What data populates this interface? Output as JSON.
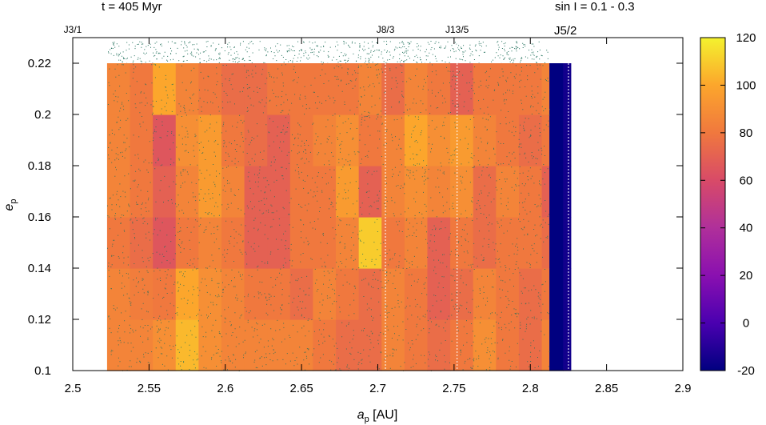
{
  "chart_data": {
    "type": "heatmap",
    "title_left": "t = 405 Myr",
    "title_right": "sin I = 0.1 - 0.3",
    "xlabel_main": "a",
    "xlabel_sub": "p",
    "xlabel_unit": " [AU]",
    "ylabel_main": "e",
    "ylabel_sub": "p",
    "xlim": [
      2.5,
      2.9
    ],
    "ylim": [
      0.1,
      0.23
    ],
    "x_ticks": [
      "2.5",
      "2.55",
      "2.6",
      "2.65",
      "2.7",
      "2.75",
      "2.8",
      "2.85",
      "2.9"
    ],
    "y_ticks": [
      "0.1",
      "0.12",
      "0.14",
      "0.16",
      "0.18",
      "0.2",
      "0.22"
    ],
    "colorbar": {
      "min": -20,
      "max": 120,
      "ticks": [
        "-20",
        "0",
        "20",
        "40",
        "60",
        "80",
        "100",
        "120"
      ]
    },
    "resonances": [
      {
        "label": "J3/1",
        "a": 2.5
      },
      {
        "label": "J8/3",
        "a": 2.705
      },
      {
        "label": "J13/5",
        "a": 2.752
      },
      {
        "label": "J5/2",
        "a": 2.825
      }
    ],
    "x_edges": [
      2.5225,
      2.5375,
      2.5525,
      2.5675,
      2.5825,
      2.5975,
      2.6125,
      2.6275,
      2.6425,
      2.6575,
      2.6725,
      2.6875,
      2.7025,
      2.7175,
      2.7325,
      2.7475,
      2.7625,
      2.7775,
      2.7925,
      2.8075,
      2.8125,
      2.8215,
      2.8265
    ],
    "y_edges": [
      0.1,
      0.12,
      0.14,
      0.16,
      0.18,
      0.2,
      0.22
    ],
    "values": [
      [
        85,
        85,
        90,
        105,
        90,
        85,
        85,
        85,
        85,
        80,
        75,
        75,
        85,
        80,
        75,
        80,
        90,
        80,
        75,
        85,
        -20,
        -15
      ],
      [
        85,
        82,
        80,
        100,
        90,
        85,
        80,
        80,
        75,
        85,
        80,
        75,
        85,
        80,
        70,
        75,
        85,
        80,
        75,
        80,
        -20,
        -15
      ],
      [
        80,
        75,
        65,
        80,
        85,
        80,
        70,
        70,
        80,
        80,
        85,
        110,
        80,
        85,
        70,
        80,
        75,
        80,
        80,
        75,
        -20,
        -15
      ],
      [
        85,
        80,
        70,
        85,
        95,
        85,
        70,
        70,
        80,
        80,
        95,
        70,
        85,
        90,
        85,
        90,
        75,
        85,
        80,
        70,
        -20,
        -15
      ],
      [
        85,
        80,
        65,
        90,
        95,
        80,
        75,
        70,
        80,
        85,
        90,
        80,
        85,
        100,
        90,
        95,
        85,
        80,
        75,
        80,
        -20,
        -15
      ],
      [
        85,
        80,
        100,
        85,
        80,
        75,
        75,
        80,
        80,
        80,
        80,
        85,
        75,
        85,
        80,
        70,
        80,
        80,
        80,
        85,
        -20,
        -15
      ]
    ]
  }
}
